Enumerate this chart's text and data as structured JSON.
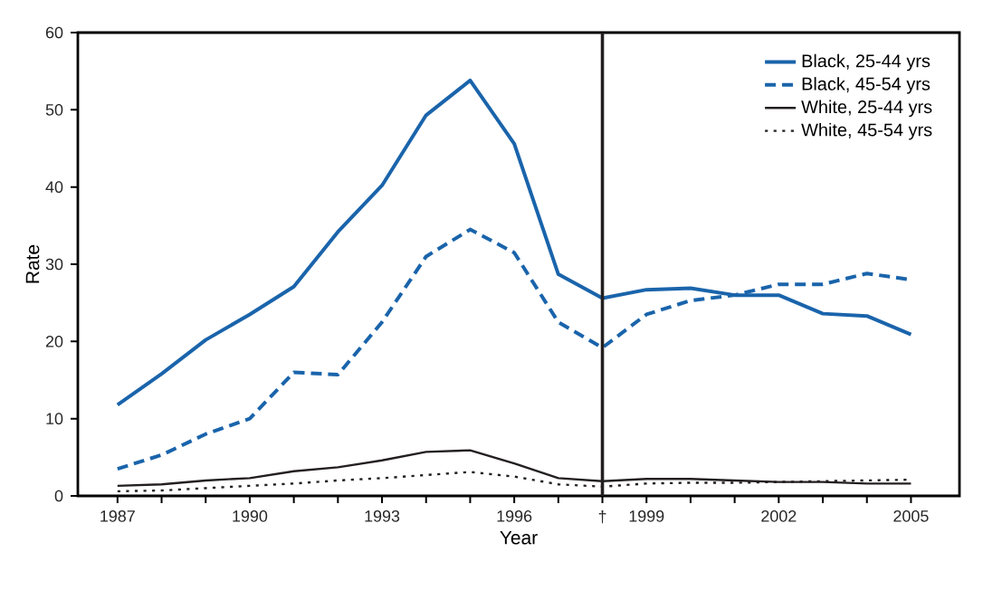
{
  "chart_data": {
    "type": "line",
    "xlabel": "Year",
    "ylabel": "Rate",
    "x": [
      1987,
      1988,
      1989,
      1990,
      1991,
      1992,
      1993,
      1994,
      1995,
      1996,
      1997,
      1998,
      1999,
      2000,
      2001,
      2002,
      2003,
      2004,
      2005
    ],
    "series": [
      {
        "name": "Black, 25-44 yrs",
        "color": "#1a64ab",
        "line_style": "solid",
        "values": [
          11.8,
          15.8,
          20.2,
          23.5,
          27.1,
          34.2,
          40.2,
          49.3,
          53.8,
          45.6,
          28.7,
          25.6,
          26.7,
          26.9,
          26.0,
          26.0,
          23.6,
          23.3,
          20.9
        ]
      },
      {
        "name": "Black, 45-54 yrs",
        "color": "#1a64ab",
        "line_style": "dashed",
        "values": [
          3.5,
          5.3,
          8.0,
          10.0,
          16.0,
          15.7,
          22.5,
          31.0,
          34.5,
          31.5,
          22.5,
          19.2,
          23.5,
          25.3,
          26.0,
          27.4,
          27.4,
          28.8,
          28.0
        ]
      },
      {
        "name": "White, 25-44 yrs",
        "color": "#231f20",
        "line_style": "solid",
        "values": [
          1.3,
          1.5,
          2.0,
          2.3,
          3.2,
          3.7,
          4.6,
          5.7,
          5.9,
          4.2,
          2.3,
          1.9,
          2.2,
          2.2,
          2.0,
          1.8,
          1.8,
          1.6,
          1.6
        ]
      },
      {
        "name": "White, 45-54 yrs",
        "color": "#231f20",
        "line_style": "dotted",
        "values": [
          0.6,
          0.7,
          1.0,
          1.3,
          1.6,
          2.0,
          2.3,
          2.7,
          3.1,
          2.5,
          1.5,
          1.2,
          1.6,
          1.7,
          1.7,
          1.8,
          1.9,
          2.0,
          2.1
        ]
      }
    ],
    "xlim": [
      1986.1,
      2006.1
    ],
    "xticks": [
      1987,
      {
        "value": 1988,
        "label": null
      },
      {
        "value": 1989,
        "label": null
      },
      1990,
      {
        "value": 1991,
        "label": null
      },
      {
        "value": 1992,
        "label": null
      },
      1993,
      {
        "value": 1994,
        "label": null
      },
      {
        "value": 1995,
        "label": null
      },
      1996,
      {
        "value": 1997,
        "label": null
      },
      {
        "value": 1998,
        "label": "†"
      },
      1999,
      {
        "value": 2000,
        "label": null
      },
      {
        "value": 2001,
        "label": null
      },
      2002,
      {
        "value": 2003,
        "label": null
      },
      {
        "value": 2004,
        "label": null
      },
      2005
    ],
    "ylim": [
      0,
      60
    ],
    "yticks": [
      0,
      10,
      20,
      30,
      40,
      50,
      60
    ],
    "ref_lines": [
      {
        "axis": "x",
        "value": 1998,
        "color": "#231f20"
      }
    ],
    "grid": false,
    "legend": "top right",
    "marker": "none"
  }
}
